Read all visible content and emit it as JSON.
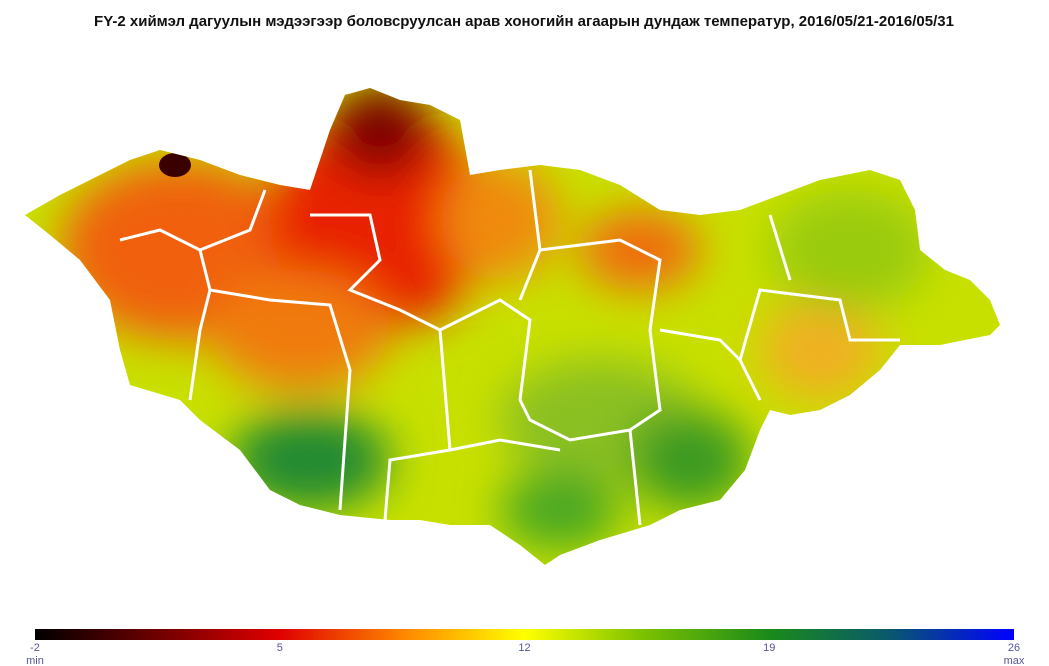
{
  "title": "FY-2 хиймэл дагуулын мэдээгээр боловсруулсан арав хоногийн агаарын дундаж температур, 2016/05/21-2016/05/31",
  "colorbar": {
    "range": [
      -2,
      26
    ],
    "ticks": [
      -2,
      5,
      12,
      19,
      26
    ],
    "min_label": "min",
    "max_label": "max"
  }
}
